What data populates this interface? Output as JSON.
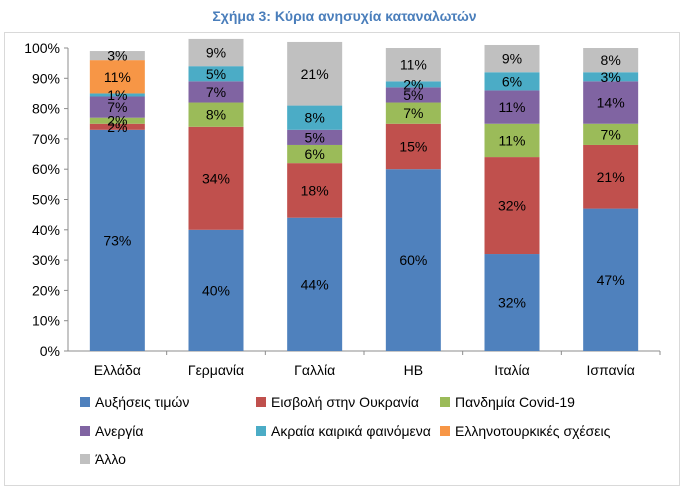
{
  "chart_data": {
    "type": "bar",
    "stacked": true,
    "title": "Σχήμα 3: Κύρια ανησυχία καταναλωτών",
    "categories": [
      "Ελλάδα",
      "Γερμανία",
      "Γαλλία",
      "ΗΒ",
      "Ιταλία",
      "Ισπανία"
    ],
    "yticks": [
      "0%",
      "10%",
      "20%",
      "30%",
      "40%",
      "50%",
      "60%",
      "70%",
      "80%",
      "90%",
      "100%"
    ],
    "ylim": [
      0,
      100
    ],
    "legend_position": "bottom",
    "grid": false,
    "series": [
      {
        "name": "Αυξήσεις τιμών",
        "color": "#4f81bd",
        "values": [
          73,
          40,
          44,
          60,
          32,
          47
        ],
        "labels": [
          "73%",
          "40%",
          "44%",
          "60%",
          "32%",
          "47%"
        ]
      },
      {
        "name": "Εισβολή στην Ουκρανία",
        "color": "#c0504d",
        "values": [
          2,
          34,
          18,
          15,
          32,
          21
        ],
        "labels": [
          "2%",
          "34%",
          "18%",
          "15%",
          "32%",
          "21%"
        ]
      },
      {
        "name": "Πανδημία Covid-19",
        "color": "#9bbb59",
        "values": [
          2,
          8,
          6,
          7,
          11,
          7
        ],
        "labels": [
          "2%",
          "8%",
          "6%",
          "7%",
          "11%",
          "7%"
        ]
      },
      {
        "name": "Ανεργία",
        "color": "#8064a2",
        "values": [
          7,
          7,
          5,
          5,
          11,
          14
        ],
        "labels": [
          "7%",
          "7%",
          "5%",
          "5%",
          "11%",
          "14%"
        ]
      },
      {
        "name": "Ακραία καιρικά φαινόμενα",
        "color": "#4bacc6",
        "values": [
          1,
          5,
          8,
          2,
          6,
          3
        ],
        "labels": [
          "1%",
          "5%",
          "8%",
          "2%",
          "6%",
          "3%"
        ]
      },
      {
        "name": "Ελληνοτουρκικές σχέσεις",
        "color": "#f79646",
        "values": [
          11,
          0,
          0,
          0,
          0,
          0
        ],
        "labels": [
          "11%",
          "",
          "",
          "",
          "",
          ""
        ]
      },
      {
        "name": "Άλλο",
        "color": "#c0c0c0",
        "values": [
          3,
          9,
          21,
          11,
          9,
          8
        ],
        "labels": [
          "3%",
          "9%",
          "21%",
          "11%",
          "9%",
          "8%"
        ]
      }
    ]
  }
}
